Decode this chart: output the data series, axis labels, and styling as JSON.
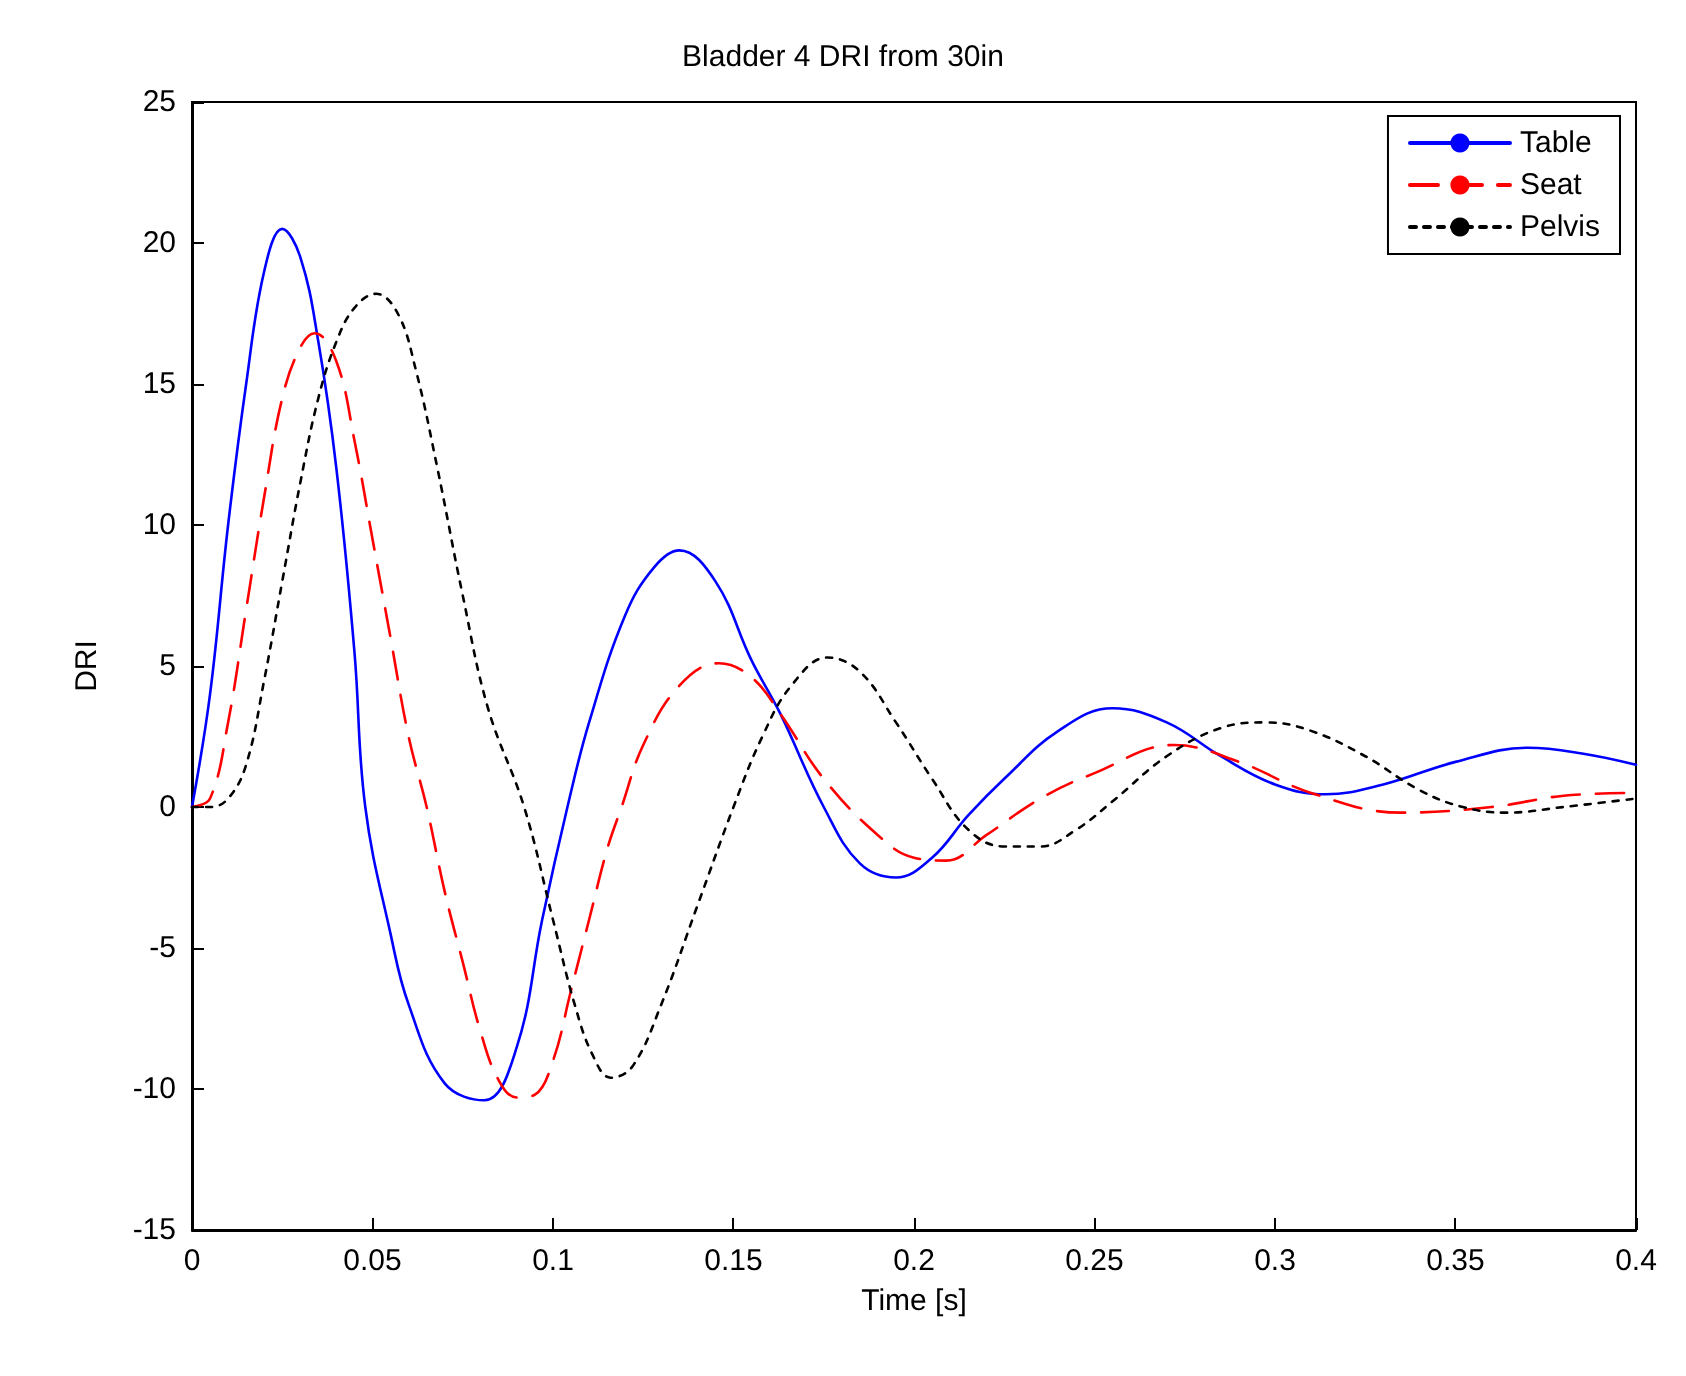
{
  "chart_data": {
    "type": "line",
    "title": "Bladder 4 DRI from 30in",
    "xlabel": "Time [s]",
    "ylabel": "DRI",
    "xlim": [
      0,
      0.4
    ],
    "xticks": [
      0,
      0.05,
      0.1,
      0.15,
      0.2,
      0.25,
      0.3,
      0.35,
      0.4
    ],
    "ylim": [
      -15,
      25
    ],
    "yticks": [
      -15,
      -10,
      -5,
      0,
      5,
      10,
      15,
      20,
      25
    ],
    "grid": false,
    "legend": "top right",
    "marker": "none",
    "series": [
      {
        "name": "Table",
        "color": "#0000ff",
        "line_style": "solid",
        "x": [
          0,
          0.005,
          0.01,
          0.015,
          0.02,
          0.025,
          0.03,
          0.035,
          0.04,
          0.045,
          0.048,
          0.055,
          0.06,
          0.07,
          0.081,
          0.09,
          0.097,
          0.104,
          0.11,
          0.12,
          0.128,
          0.135,
          0.145,
          0.155,
          0.163,
          0.175,
          0.185,
          0.195,
          0.205,
          0.215,
          0.225,
          0.24,
          0.255,
          0.27,
          0.285,
          0.3,
          0.314,
          0.33,
          0.35,
          0.37,
          0.385,
          0.4
        ],
        "values": [
          0,
          4,
          10,
          15,
          19,
          20.5,
          19.5,
          16.5,
          12,
          5.5,
          0,
          -4.5,
          -7,
          -9.8,
          -10.4,
          -8.5,
          -4,
          0,
          3,
          6.8,
          8.5,
          9.1,
          8,
          5.2,
          3.3,
          0,
          -2,
          -2.5,
          -1.8,
          -0.3,
          1,
          2.7,
          3.5,
          3,
          1.8,
          0.8,
          0.45,
          0.8,
          1.6,
          2.1,
          1.9,
          1.5
        ]
      },
      {
        "name": "Seat",
        "color": "#ff0000",
        "line_style": "dashed",
        "x": [
          0,
          0.005,
          0.01,
          0.015,
          0.02,
          0.025,
          0.03,
          0.034,
          0.04,
          0.045,
          0.05,
          0.055,
          0.06,
          0.065,
          0.07,
          0.075,
          0.08,
          0.085,
          0.09,
          0.095,
          0.1,
          0.105,
          0.11,
          0.115,
          0.119,
          0.125,
          0.135,
          0.146,
          0.155,
          0.163,
          0.175,
          0.19,
          0.2,
          0.209,
          0.22,
          0.235,
          0.25,
          0.272,
          0.29,
          0.31,
          0.335,
          0.36,
          0.38,
          0.4
        ],
        "values": [
          0,
          0.3,
          3,
          7,
          11,
          14.5,
          16.3,
          16.8,
          15.8,
          13,
          9.5,
          6,
          2.5,
          0,
          -3,
          -5.5,
          -8,
          -9.7,
          -10.3,
          -10.2,
          -9,
          -6.5,
          -4,
          -1.5,
          0,
          2.2,
          4.3,
          5.1,
          4.6,
          3.3,
          1,
          -1,
          -1.8,
          -1.9,
          -1,
          0.3,
          1.2,
          2.2,
          1.6,
          0.5,
          -0.2,
          0,
          0.4,
          0.5
        ]
      },
      {
        "name": "Pelvis",
        "color": "#000000",
        "line_style": "dotted",
        "x": [
          0,
          0.005,
          0.01,
          0.015,
          0.02,
          0.025,
          0.03,
          0.035,
          0.04,
          0.045,
          0.051,
          0.057,
          0.062,
          0.068,
          0.075,
          0.082,
          0.092,
          0.1,
          0.106,
          0.111,
          0.116,
          0.122,
          0.13,
          0.14,
          0.15,
          0.158,
          0.166,
          0.176,
          0.185,
          0.195,
          0.205,
          0.215,
          0.225,
          0.235,
          0.245,
          0.255,
          0.27,
          0.285,
          0.2975,
          0.31,
          0.325,
          0.34,
          0.352,
          0.364,
          0.38,
          0.4
        ],
        "values": [
          0,
          0,
          0.3,
          1.5,
          4.5,
          8,
          11.5,
          14.5,
          16.5,
          17.7,
          18.2,
          17.5,
          15.5,
          12,
          7.5,
          3.5,
          0,
          -4,
          -7,
          -8.8,
          -9.6,
          -9.2,
          -7,
          -3.5,
          0,
          2.5,
          4.3,
          5.3,
          4.8,
          3,
          1,
          -0.8,
          -1.4,
          -1.4,
          -0.8,
          0.2,
          1.8,
          2.8,
          3.0,
          2.7,
          1.8,
          0.6,
          0,
          -0.2,
          0,
          0.3
        ]
      }
    ]
  }
}
